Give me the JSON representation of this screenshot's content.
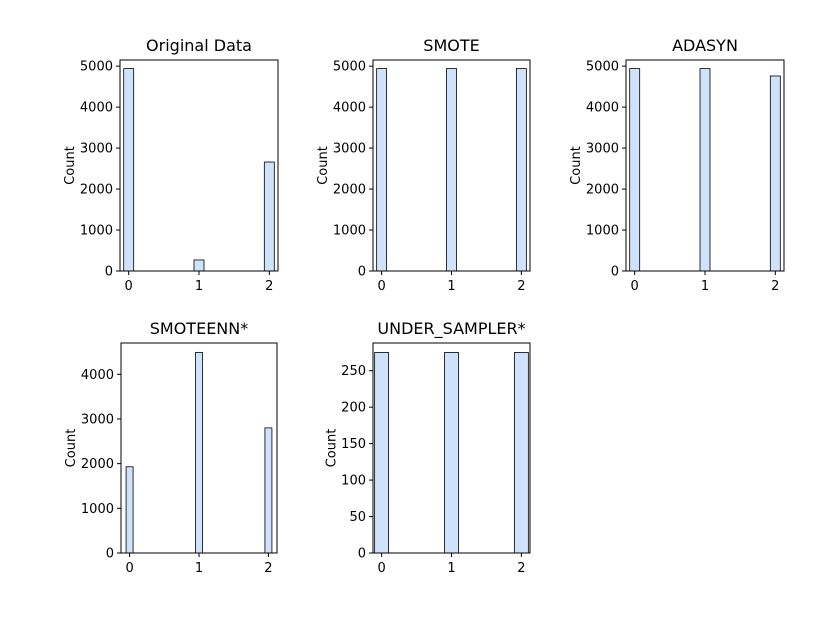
{
  "colors": {
    "bar_fill": "#cfe2fb",
    "bar_edge": "#000000",
    "axis": "#000000"
  },
  "chart_data": [
    {
      "type": "bar",
      "title": "Original Data",
      "ylabel": "Count",
      "categories": [
        0,
        1,
        2
      ],
      "x_ticks": [
        "0",
        "1",
        "2"
      ],
      "y_ticks": [
        "0",
        "1000",
        "2000",
        "3000",
        "4000",
        "5000"
      ],
      "ylim": [
        0,
        5150
      ],
      "values": [
        4940,
        270,
        2660
      ],
      "grid": false
    },
    {
      "type": "bar",
      "title": "SMOTE",
      "ylabel": "Count",
      "categories": [
        0,
        1,
        2
      ],
      "x_ticks": [
        "0",
        "1",
        "2"
      ],
      "y_ticks": [
        "0",
        "1000",
        "2000",
        "3000",
        "4000",
        "5000"
      ],
      "ylim": [
        0,
        5150
      ],
      "values": [
        4940,
        4940,
        4940
      ],
      "grid": false
    },
    {
      "type": "bar",
      "title": "ADASYN",
      "ylabel": "Count",
      "categories": [
        0,
        1,
        2
      ],
      "x_ticks": [
        "0",
        "1",
        "2"
      ],
      "y_ticks": [
        "0",
        "1000",
        "2000",
        "3000",
        "4000",
        "5000"
      ],
      "ylim": [
        0,
        5150
      ],
      "values": [
        4940,
        4940,
        4760
      ],
      "grid": false
    },
    {
      "type": "bar",
      "title": "SMOTEENN*",
      "ylabel": "Count",
      "categories": [
        0,
        1,
        2
      ],
      "x_ticks": [
        "0",
        "1",
        "2"
      ],
      "y_ticks": [
        "0",
        "1000",
        "2000",
        "3000",
        "4000"
      ],
      "ylim": [
        0,
        4700
      ],
      "values": [
        1930,
        4490,
        2800
      ],
      "grid": false
    },
    {
      "type": "bar",
      "title": "UNDER_SAMPLER*",
      "ylabel": "Count",
      "categories": [
        0,
        1,
        2
      ],
      "x_ticks": [
        "0",
        "1",
        "2"
      ],
      "y_ticks": [
        "0",
        "50",
        "100",
        "150",
        "200",
        "250"
      ],
      "ylim": [
        0,
        288
      ],
      "values": [
        275,
        275,
        275
      ],
      "grid": false
    }
  ]
}
